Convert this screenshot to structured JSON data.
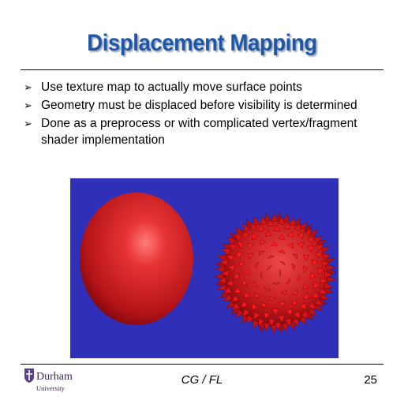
{
  "slide": {
    "title": "Displacement Mapping",
    "bullets": [
      "Use texture map to actually move surface points",
      "Geometry must be displaced before visibility is determined",
      "Done as a preprocess or with complicated vertex/fragment shader implementation"
    ],
    "bullet_marker": "➢"
  },
  "footer": {
    "logo_name": "Durham",
    "logo_subtitle": "University",
    "center_text": "CG / FL",
    "page_number": "25"
  },
  "colors": {
    "title": "#1f57a7",
    "figure_background": "#2f2fb8",
    "sphere": "#d8262a"
  }
}
